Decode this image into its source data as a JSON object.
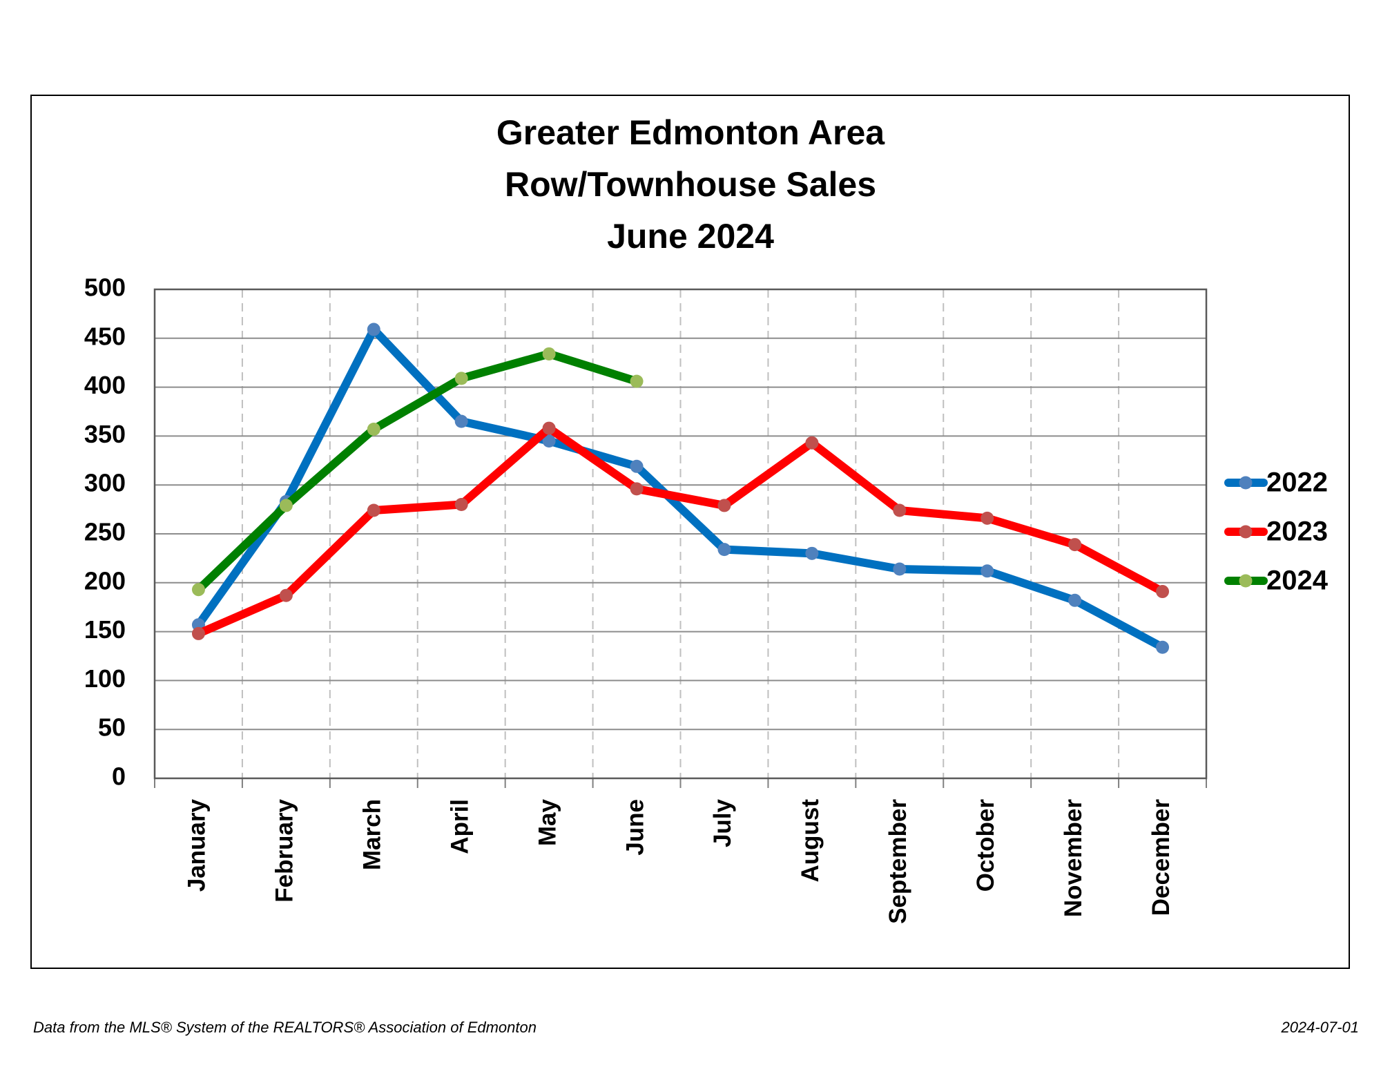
{
  "chart_data": {
    "type": "line",
    "title": [
      "Greater Edmonton Area",
      "Row/Townhouse Sales",
      "June 2024"
    ],
    "categories": [
      "January",
      "February",
      "March",
      "April",
      "May",
      "June",
      "July",
      "August",
      "September",
      "October",
      "November",
      "December"
    ],
    "series": [
      {
        "name": "2022",
        "color": "#0070c0",
        "marker_color": "#4f81bd",
        "values": [
          157,
          283,
          459,
          365,
          345,
          319,
          234,
          230,
          214,
          212,
          182,
          134
        ]
      },
      {
        "name": "2023",
        "color": "#ff0000",
        "marker_color": "#c0504d",
        "values": [
          148,
          187,
          274,
          280,
          358,
          296,
          279,
          343,
          274,
          266,
          239,
          191
        ]
      },
      {
        "name": "2024",
        "color": "#008000",
        "marker_color": "#9bbb59",
        "values": [
          193,
          279,
          357,
          409,
          434,
          406,
          null,
          null,
          null,
          null,
          null,
          null
        ]
      }
    ],
    "ylim": [
      0,
      500
    ],
    "yticks": [
      0,
      50,
      100,
      150,
      200,
      250,
      300,
      350,
      400,
      450,
      500
    ],
    "grid": true,
    "legend": "right",
    "source": "Data from the MLS® System of the REALTORS® Association of Edmonton",
    "date": "2024-07-01"
  }
}
